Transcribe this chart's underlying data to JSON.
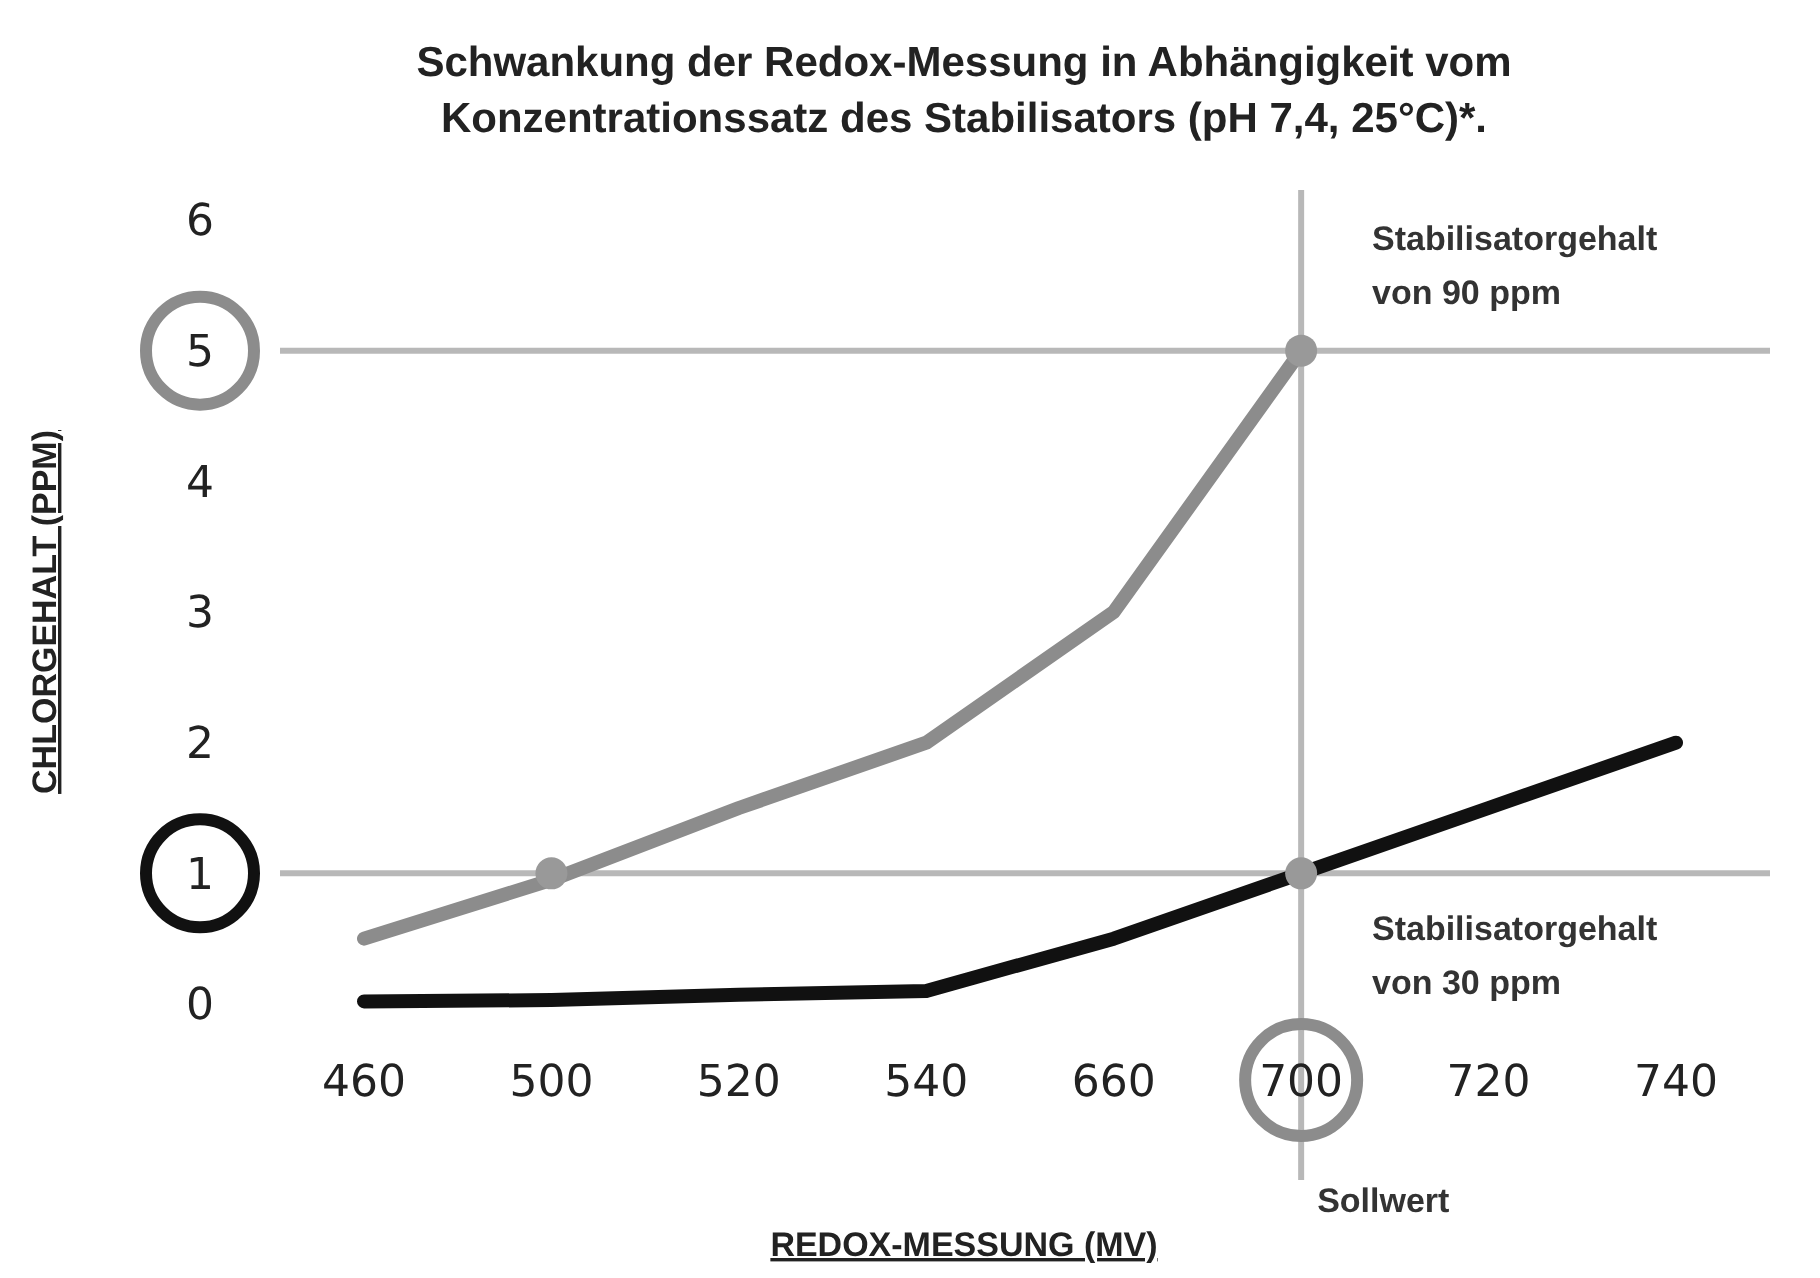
{
  "chart_data": {
    "type": "line",
    "title": "Schwankung der Redox-Messung in Abhängigkeit vom\nKonzentrationssatz des Stabilisators (pH 7,4, 25°C)*.",
    "xlabel": "REDOX-MESSUNG (MV)",
    "ylabel": "CHLORGEHALT (PPM)",
    "categories": [
      "460",
      "500",
      "520",
      "540",
      "660",
      "700",
      "720",
      "740"
    ],
    "series": [
      {
        "name": "Stabilisatorgehalt von 90 ppm",
        "color": "#8c8c8c",
        "values": [
          0.5,
          0.95,
          1.5,
          2,
          3,
          5,
          null,
          null
        ]
      },
      {
        "name": "Stabilisatorgehalt von 30 ppm",
        "color": "#111111",
        "values": [
          0.02,
          0.03,
          0.07,
          0.1,
          0.5,
          1,
          1.5,
          2
        ]
      },
      {
        "type": "scatter",
        "marker": "circle",
        "color": "#999999",
        "x": [
          "500",
          "700",
          "700"
        ],
        "values": [
          1,
          5,
          1
        ]
      }
    ],
    "ylim": [
      0,
      6
    ],
    "yticks": [
      0,
      1,
      2,
      3,
      4,
      5,
      6
    ],
    "ref_lines": [
      {
        "axis": "y",
        "value": 5,
        "color": "#b8b8b8"
      },
      {
        "axis": "y",
        "value": 1,
        "color": "#b8b8b8"
      },
      {
        "axis": "x",
        "value": "700",
        "label": "Sollwert",
        "color": "#b8b8b8"
      }
    ],
    "grid": false,
    "line_style": "solid"
  }
}
